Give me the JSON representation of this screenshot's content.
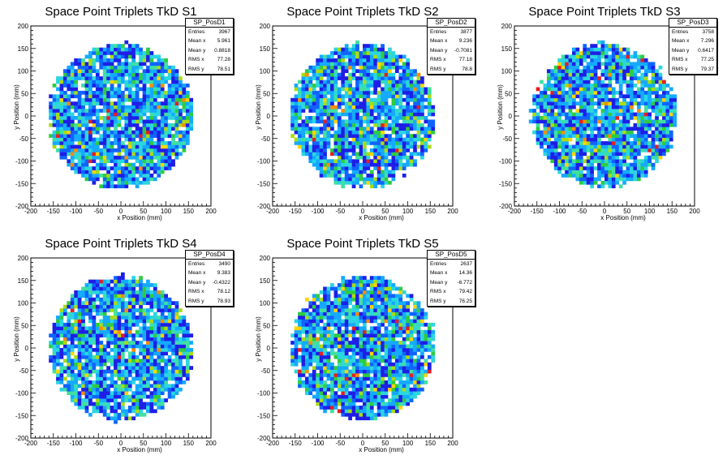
{
  "colors": {
    "palette": [
      "#1e1ee6",
      "#0f64ff",
      "#14aaff",
      "#2bd6e0",
      "#40e0a0",
      "#2ecc40",
      "#aadc14",
      "#ffd400",
      "#ff8c00",
      "#e61e1e"
    ]
  },
  "chart_data": [
    {
      "type": "heatmap",
      "title": "Space Point Triplets TkD S1",
      "xlabel": "x Position (mm)",
      "ylabel": "y Position (mm)",
      "xlim": [
        -200,
        200
      ],
      "ylim": [
        -200,
        200
      ],
      "xticks": [
        -200,
        -150,
        -100,
        -50,
        0,
        50,
        100,
        150,
        200
      ],
      "yticks": [
        -200,
        -150,
        -100,
        -50,
        0,
        50,
        100,
        150,
        200
      ],
      "bins": [
        50,
        50
      ],
      "region": {
        "shape": "circle",
        "center": [
          0,
          0
        ],
        "radius": 160
      },
      "stats": {
        "name": "SP_PosD1",
        "rows": [
          {
            "label": "Entries",
            "value": "3967"
          },
          {
            "label": "Mean x",
            "value": "5.961"
          },
          {
            "label": "Mean y",
            "value": "0.8818"
          },
          {
            "label": "RMS x",
            "value": "77.28"
          },
          {
            "label": "RMS y",
            "value": "78.51"
          }
        ]
      }
    },
    {
      "type": "heatmap",
      "title": "Space Point Triplets TkD S2",
      "xlabel": "x Position (mm)",
      "ylabel": "y Position (mm)",
      "xlim": [
        -200,
        200
      ],
      "ylim": [
        -200,
        200
      ],
      "xticks": [
        -200,
        -150,
        -100,
        -50,
        0,
        50,
        100,
        150,
        200
      ],
      "yticks": [
        -200,
        -150,
        -100,
        -50,
        0,
        50,
        100,
        150,
        200
      ],
      "bins": [
        50,
        50
      ],
      "region": {
        "shape": "circle",
        "center": [
          0,
          0
        ],
        "radius": 160
      },
      "stats": {
        "name": "SP_PosD2",
        "rows": [
          {
            "label": "Entries",
            "value": "3877"
          },
          {
            "label": "Mean x",
            "value": "9.236"
          },
          {
            "label": "Mean y",
            "value": "-0.7081"
          },
          {
            "label": "RMS x",
            "value": "77.18"
          },
          {
            "label": "RMS y",
            "value": "78.8"
          }
        ]
      }
    },
    {
      "type": "heatmap",
      "title": "Space Point Triplets TkD S3",
      "xlabel": "x Position (mm)",
      "ylabel": "y Position (mm)",
      "xlim": [
        -200,
        200
      ],
      "ylim": [
        -200,
        200
      ],
      "xticks": [
        -200,
        -150,
        -100,
        -50,
        0,
        50,
        100,
        150,
        200
      ],
      "yticks": [
        -200,
        -150,
        -100,
        -50,
        0,
        50,
        100,
        150,
        200
      ],
      "bins": [
        50,
        50
      ],
      "region": {
        "shape": "circle",
        "center": [
          0,
          0
        ],
        "radius": 160
      },
      "stats": {
        "name": "SP_PosD3",
        "rows": [
          {
            "label": "Entries",
            "value": "3758"
          },
          {
            "label": "Mean x",
            "value": "7.296"
          },
          {
            "label": "Mean y",
            "value": "0.6417"
          },
          {
            "label": "RMS x",
            "value": "77.25"
          },
          {
            "label": "RMS y",
            "value": "79.37"
          }
        ]
      }
    },
    {
      "type": "heatmap",
      "title": "Space Point Triplets TkD S4",
      "xlabel": "x Position (mm)",
      "ylabel": "y Position (mm)",
      "xlim": [
        -200,
        200
      ],
      "ylim": [
        -200,
        200
      ],
      "xticks": [
        -200,
        -150,
        -100,
        -50,
        0,
        50,
        100,
        150,
        200
      ],
      "yticks": [
        -200,
        -150,
        -100,
        -50,
        0,
        50,
        100,
        150,
        200
      ],
      "bins": [
        50,
        50
      ],
      "region": {
        "shape": "circle",
        "center": [
          0,
          0
        ],
        "radius": 160
      },
      "stats": {
        "name": "SP_PosD4",
        "rows": [
          {
            "label": "Entries",
            "value": "3490"
          },
          {
            "label": "Mean x",
            "value": "9.383"
          },
          {
            "label": "Mean y",
            "value": "-0.4322"
          },
          {
            "label": "RMS x",
            "value": "78.12"
          },
          {
            "label": "RMS y",
            "value": "78.93"
          }
        ]
      }
    },
    {
      "type": "heatmap",
      "title": "Space Point Triplets TkD S5",
      "xlabel": "x Position (mm)",
      "ylabel": "y Position (mm)",
      "xlim": [
        -200,
        200
      ],
      "ylim": [
        -200,
        200
      ],
      "xticks": [
        -200,
        -150,
        -100,
        -50,
        0,
        50,
        100,
        150,
        200
      ],
      "yticks": [
        -200,
        -150,
        -100,
        -50,
        0,
        50,
        100,
        150,
        200
      ],
      "bins": [
        50,
        50
      ],
      "region": {
        "shape": "circle",
        "center": [
          0,
          0
        ],
        "radius": 160
      },
      "stats": {
        "name": "SP_PosD5",
        "rows": [
          {
            "label": "Entries",
            "value": "2637"
          },
          {
            "label": "Mean x",
            "value": "14.36"
          },
          {
            "label": "Mean y",
            "value": "-6.772"
          },
          {
            "label": "RMS x",
            "value": "79.42"
          },
          {
            "label": "RMS y",
            "value": "76.25"
          }
        ]
      }
    }
  ]
}
